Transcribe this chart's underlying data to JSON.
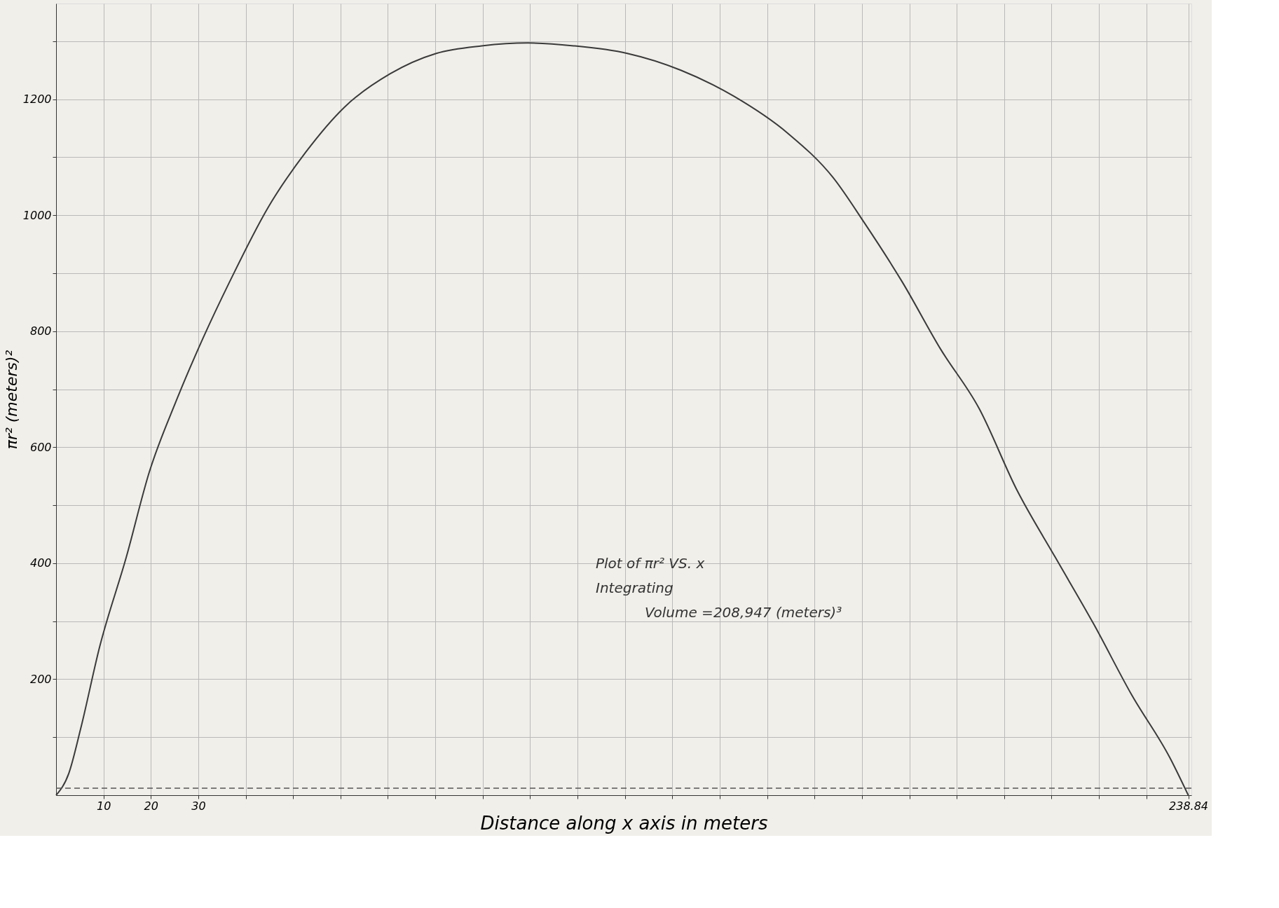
{
  "chart_data": {
    "type": "line",
    "xlabel": "Distance along x axis in meters",
    "ylabel": "πr² (meters)²",
    "x": [
      0,
      2.7,
      5.2,
      9.2,
      14.8,
      19.7,
      25.3,
      31,
      36.6,
      44.7,
      52.7,
      60.8,
      70.5,
      80.2,
      89.8,
      99.5,
      109.2,
      120.5,
      131.8,
      143,
      154.4,
      164,
      170.5,
      178.5,
      186.6,
      194.7,
      202.7,
      210.8,
      218.9,
      226.9,
      235,
      238.84
    ],
    "series": [
      {
        "color": "#3a3a3a",
        "values": [
          0,
          38,
          115,
          256,
          410,
          558,
          679,
          788,
          885,
          1013,
          1109,
          1186,
          1244,
          1279,
          1292,
          1297,
          1292,
          1279,
          1250,
          1205,
          1141,
          1064,
          987,
          885,
          769,
          667,
          526,
          410,
          295,
          173,
          64,
          0
        ]
      }
    ],
    "xlim": [
      0,
      239.5
    ],
    "ylim": [
      0,
      1365
    ],
    "xticks": [
      10,
      20,
      30,
      {
        "value": 40,
        "label": null
      },
      {
        "value": 50,
        "label": null
      },
      {
        "value": 60,
        "label": null
      },
      {
        "value": 70,
        "label": null
      },
      {
        "value": 80,
        "label": null
      },
      {
        "value": 90,
        "label": null
      },
      {
        "value": 100,
        "label": null
      },
      {
        "value": 110,
        "label": null
      },
      {
        "value": 120,
        "label": null
      },
      {
        "value": 130,
        "label": null
      },
      {
        "value": 140,
        "label": null
      },
      {
        "value": 150,
        "label": null
      },
      {
        "value": 160,
        "label": null
      },
      {
        "value": 170,
        "label": null
      },
      {
        "value": 180,
        "label": null
      },
      {
        "value": 190,
        "label": null
      },
      {
        "value": 200,
        "label": null
      },
      {
        "value": 210,
        "label": null
      },
      {
        "value": 220,
        "label": null
      },
      {
        "value": 230,
        "label": null
      },
      238.84
    ],
    "yticks": [
      {
        "value": 100,
        "label": null
      },
      200,
      {
        "value": 300,
        "label": null
      },
      400,
      {
        "value": 500,
        "label": null
      },
      600,
      {
        "value": 700,
        "label": null
      },
      800,
      {
        "value": 900,
        "label": null
      },
      1000,
      {
        "value": 1100,
        "label": null
      },
      1200,
      {
        "value": 1300,
        "label": null
      }
    ],
    "grid": true,
    "marker": "none",
    "line_style": "solid",
    "ref_lines": [
      {
        "axis": "y",
        "value": 12,
        "line_style": "dashed",
        "color": "#555555"
      }
    ],
    "annotations": [
      "Plot of πr² VS. x",
      "Integrating",
      "Volume =208,947 (meters)³"
    ]
  }
}
